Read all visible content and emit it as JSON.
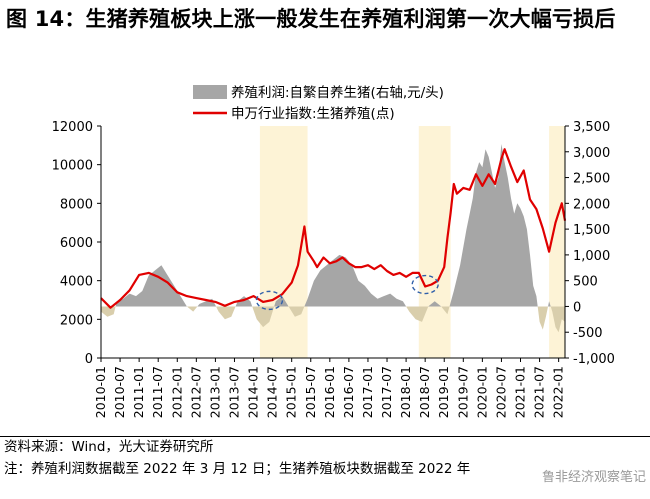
{
  "figure": {
    "title": "图 14：生猪养殖板块上涨一般发生在养殖利润第一次大幅亏损后",
    "source": "资料来源：Wind，光大证券研究所",
    "note": "注：养殖利润数据截至 2022 年 3 月 12 日；生猪养殖板块数据截至 2022 年",
    "watermark": "鲁非经济观察笔记"
  },
  "colors": {
    "index_line": "#e00000",
    "profit_positive": "#a6a6a6",
    "profit_negative": "#d9ceac",
    "shade": "#fdf3d6",
    "circle": "#2f5faa"
  },
  "chart_data": {
    "type": "line",
    "legend": {
      "position": "top",
      "entries": [
        "养殖利润:自繁自养生猪(右轴,元/头)",
        "申万行业指数:生猪养殖(点)"
      ]
    },
    "left_axis": {
      "min": 0,
      "max": 12000,
      "ticks": [
        "0",
        "2000",
        "4000",
        "6000",
        "8000",
        "10000",
        "12000"
      ]
    },
    "right_axis": {
      "min": -1000,
      "max": 3500,
      "ticks": [
        "-1,000",
        "-500",
        "0",
        "500",
        "1,000",
        "1,500",
        "2,000",
        "2,500",
        "3,000",
        "3,500"
      ]
    },
    "x_ticks": [
      "2010-01",
      "2010-07",
      "2011-01",
      "2011-07",
      "2012-01",
      "2012-07",
      "2013-01",
      "2013-07",
      "2014-01",
      "2014-07",
      "2015-01",
      "2015-07",
      "2016-01",
      "2016-07",
      "2017-01",
      "2017-07",
      "2018-01",
      "2018-07",
      "2019-01",
      "2019-07",
      "2020-01",
      "2020-07",
      "2021-01",
      "2021-07",
      "2022-01"
    ],
    "x_range": [
      "2010-01",
      "2022-03"
    ],
    "shaded_periods": [
      [
        "2014-03",
        "2015-06"
      ],
      [
        "2018-05",
        "2019-03"
      ],
      [
        "2021-10",
        "2022-03"
      ]
    ],
    "highlight_circles": [
      {
        "date": "2014-06",
        "value": 2980
      },
      {
        "date": "2018-07",
        "value": 3800
      }
    ],
    "series": [
      {
        "name": "养殖利润:自繁自养生猪(右轴,元/头)",
        "type": "area",
        "axis": "right",
        "x": [
          "2010-01",
          "2010-03",
          "2010-05",
          "2010-06",
          "2010-08",
          "2010-10",
          "2010-12",
          "2011-02",
          "2011-04",
          "2011-06",
          "2011-08",
          "2011-10",
          "2011-12",
          "2012-02",
          "2012-04",
          "2012-06",
          "2012-08",
          "2012-10",
          "2012-12",
          "2013-02",
          "2013-04",
          "2013-06",
          "2013-08",
          "2013-10",
          "2013-12",
          "2014-02",
          "2014-04",
          "2014-06",
          "2014-08",
          "2014-10",
          "2014-12",
          "2015-02",
          "2015-04",
          "2015-06",
          "2015-08",
          "2015-10",
          "2015-12",
          "2016-02",
          "2016-04",
          "2016-06",
          "2016-08",
          "2016-10",
          "2016-12",
          "2017-02",
          "2017-04",
          "2017-06",
          "2017-08",
          "2017-10",
          "2017-12",
          "2018-02",
          "2018-04",
          "2018-06",
          "2018-08",
          "2018-10",
          "2018-12",
          "2019-02",
          "2019-04",
          "2019-06",
          "2019-08",
          "2019-09",
          "2019-10",
          "2019-11",
          "2019-12",
          "2020-01",
          "2020-02",
          "2020-03",
          "2020-04",
          "2020-05",
          "2020-06",
          "2020-07",
          "2020-08",
          "2020-09",
          "2020-10",
          "2020-11",
          "2020-12",
          "2021-01",
          "2021-02",
          "2021-03",
          "2021-04",
          "2021-05",
          "2021-06",
          "2021-07",
          "2021-08",
          "2021-09",
          "2021-10",
          "2021-11",
          "2021-12",
          "2022-01",
          "2022-02",
          "2022-03"
        ],
        "values": [
          -100,
          -200,
          -150,
          100,
          150,
          250,
          200,
          300,
          600,
          700,
          800,
          600,
          400,
          200,
          0,
          -100,
          50,
          100,
          150,
          -100,
          -250,
          -200,
          100,
          200,
          100,
          -250,
          -400,
          -300,
          100,
          200,
          0,
          -200,
          -150,
          150,
          500,
          700,
          800,
          900,
          1000,
          950,
          800,
          500,
          400,
          250,
          150,
          200,
          250,
          150,
          100,
          -100,
          -250,
          -300,
          0,
          100,
          0,
          -150,
          300,
          800,
          1500,
          1800,
          2100,
          2600,
          2800,
          2700,
          3050,
          2900,
          2600,
          2300,
          2500,
          3150,
          2800,
          2500,
          2100,
          1800,
          2000,
          1900,
          1750,
          1500,
          1000,
          400,
          200,
          -300,
          -450,
          -200,
          100,
          -100,
          -400,
          -500,
          -250,
          -300
        ]
      },
      {
        "name": "申万行业指数:生猪养殖(点)",
        "type": "line",
        "axis": "left",
        "x": [
          "2010-01",
          "2010-04",
          "2010-07",
          "2010-10",
          "2011-01",
          "2011-04",
          "2011-07",
          "2011-10",
          "2012-01",
          "2012-04",
          "2012-07",
          "2012-10",
          "2013-01",
          "2013-04",
          "2013-07",
          "2013-10",
          "2014-01",
          "2014-04",
          "2014-07",
          "2014-10",
          "2015-01",
          "2015-03",
          "2015-05",
          "2015-06",
          "2015-08",
          "2015-09",
          "2015-11",
          "2016-01",
          "2016-03",
          "2016-05",
          "2016-07",
          "2016-09",
          "2016-11",
          "2017-01",
          "2017-03",
          "2017-05",
          "2017-07",
          "2017-09",
          "2017-11",
          "2018-01",
          "2018-03",
          "2018-05",
          "2018-07",
          "2018-09",
          "2018-11",
          "2019-01",
          "2019-02",
          "2019-03",
          "2019-04",
          "2019-05",
          "2019-07",
          "2019-09",
          "2019-11",
          "2020-01",
          "2020-03",
          "2020-05",
          "2020-07",
          "2020-08",
          "2020-10",
          "2020-12",
          "2021-02",
          "2021-04",
          "2021-06",
          "2021-08",
          "2021-10",
          "2021-12",
          "2022-01",
          "2022-02",
          "2022-03"
        ],
        "values": [
          3100,
          2600,
          3000,
          3500,
          4300,
          4400,
          4200,
          3900,
          3400,
          3200,
          3100,
          3000,
          2900,
          2700,
          2900,
          3000,
          3200,
          2900,
          3000,
          3300,
          3900,
          4800,
          6800,
          5500,
          5000,
          4700,
          5200,
          4900,
          5000,
          5200,
          4900,
          4700,
          4700,
          4800,
          4600,
          4800,
          4500,
          4300,
          4400,
          4200,
          4400,
          4400,
          3700,
          3800,
          4000,
          4700,
          6200,
          7500,
          9000,
          8500,
          8800,
          8700,
          9500,
          8900,
          9500,
          9000,
          10300,
          10800,
          9900,
          9100,
          9700,
          8200,
          7700,
          6700,
          5500,
          7000,
          7500,
          8000,
          7100
        ]
      }
    ]
  }
}
